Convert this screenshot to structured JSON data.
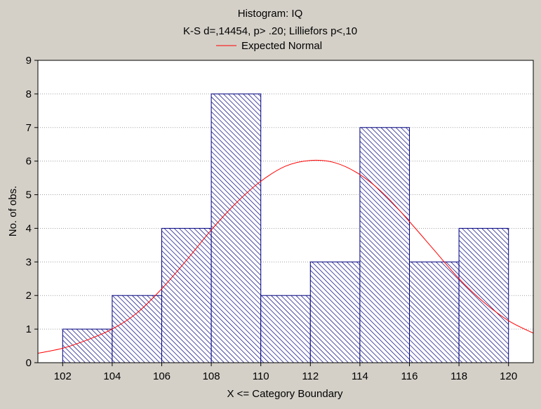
{
  "colors": {
    "background": "#d4d0c8",
    "plot_area": "#ffffff",
    "bar_stroke": "#00007f",
    "bar_hatch": "#00007f",
    "curve": "#ff0000",
    "grid": "#a0a0a0"
  },
  "chart_data": {
    "type": "bar",
    "title": "Histogram: IQ",
    "subtitle": "K-S d=,14454, p> .20; Lilliefors p<,10",
    "legend": {
      "entries": [
        "Expected Normal"
      ],
      "placement": "top-center"
    },
    "xlabel": "X <= Category Boundary",
    "ylabel": "No. of obs.",
    "xlim": [
      101,
      121
    ],
    "ylim": [
      0,
      9
    ],
    "xticks": [
      "102",
      "104",
      "106",
      "108",
      "110",
      "112",
      "114",
      "116",
      "118",
      "120"
    ],
    "yticks": [
      "0",
      "1",
      "2",
      "3",
      "4",
      "5",
      "6",
      "7",
      "8",
      "9"
    ],
    "grid": "horizontal dotted",
    "bins": [
      {
        "from": 102,
        "to": 104,
        "value": 1
      },
      {
        "from": 104,
        "to": 106,
        "value": 2
      },
      {
        "from": 106,
        "to": 108,
        "value": 4
      },
      {
        "from": 108,
        "to": 110,
        "value": 8
      },
      {
        "from": 110,
        "to": 112,
        "value": 2
      },
      {
        "from": 112,
        "to": 114,
        "value": 3
      },
      {
        "from": 114,
        "to": 116,
        "value": 7
      },
      {
        "from": 116,
        "to": 118,
        "value": 3
      },
      {
        "from": 118,
        "to": 120,
        "value": 4
      }
    ],
    "expected_normal": {
      "x": [
        101,
        102,
        103,
        104,
        105,
        106,
        107,
        108,
        109,
        110,
        111,
        112,
        113,
        114,
        115,
        116,
        117,
        118,
        119,
        120,
        121
      ],
      "y": [
        0.28,
        0.43,
        0.68,
        1.0,
        1.48,
        2.2,
        3.05,
        3.95,
        4.75,
        5.4,
        5.85,
        6.02,
        5.95,
        5.6,
        5.0,
        4.2,
        3.35,
        2.5,
        1.8,
        1.25,
        0.88
      ]
    }
  }
}
